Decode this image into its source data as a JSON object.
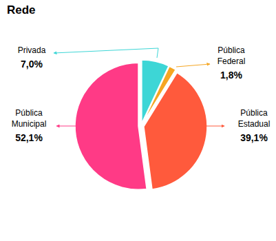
{
  "chart_data": {
    "type": "pie",
    "title": "Rede",
    "categories": [
      "Privada",
      "Pública Federal",
      "Pública Estadual",
      "Pública Municipal"
    ],
    "values": [
      7.0,
      1.8,
      39.1,
      52.1
    ],
    "value_labels": [
      "7,0%",
      "1,8%",
      "39,1%",
      "52,1%"
    ],
    "colors": [
      "#3dd6d6",
      "#f5a623",
      "#ff5a3c",
      "#ff3a86"
    ],
    "data_labels": true
  }
}
